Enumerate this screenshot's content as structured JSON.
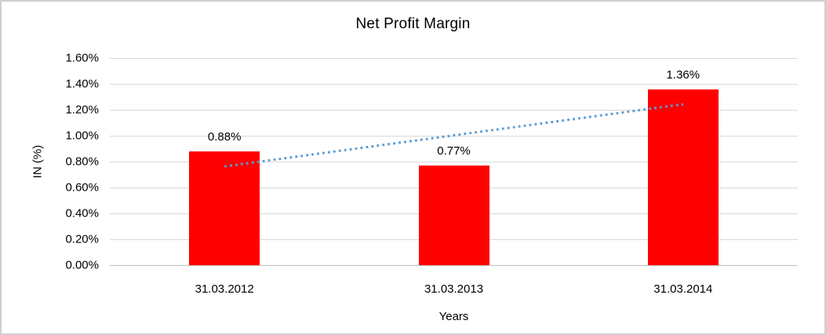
{
  "chart_data": {
    "type": "bar",
    "title": "Net Profit Margin",
    "xlabel": "Years",
    "ylabel": "IN (%)",
    "categories": [
      "31.03.2012",
      "31.03.2013",
      "31.03.2014"
    ],
    "values": [
      0.88,
      0.77,
      1.36
    ],
    "data_labels": [
      "0.88%",
      "0.77%",
      "1.36%"
    ],
    "y_ticks": [
      "0.00%",
      "0.20%",
      "0.40%",
      "0.60%",
      "0.80%",
      "1.00%",
      "1.20%",
      "1.40%",
      "1.60%"
    ],
    "y_tick_step": 0.2,
    "ylim": [
      0,
      1.6
    ],
    "grid": true,
    "legend": "none",
    "bar_color": "#ff0000",
    "gridline_color": "#d9d9d9",
    "axis_line_color": "#bfbfbf",
    "text_color": "#000000",
    "frame_color": "#d0cece",
    "trendline": {
      "type": "linear",
      "style": "dotted",
      "color": "#5b9bd5",
      "start_value": 0.763,
      "end_value": 1.243
    }
  }
}
